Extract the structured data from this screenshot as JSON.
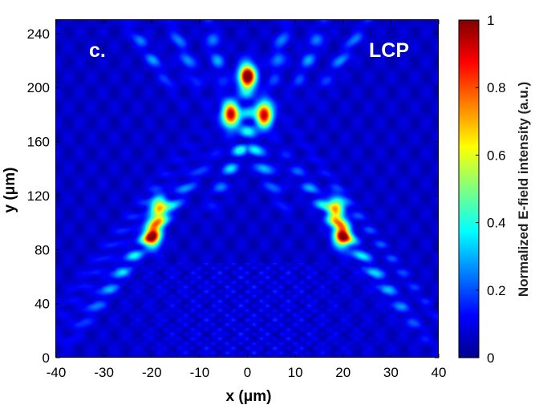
{
  "chart_data": {
    "type": "heatmap",
    "title": "",
    "xlabel": "x (μm)",
    "ylabel": "y (μm)",
    "xlim": [
      -40,
      40
    ],
    "ylim": [
      0,
      250
    ],
    "xticks": [
      -40,
      -30,
      -20,
      -10,
      0,
      10,
      20,
      30,
      40
    ],
    "yticks": [
      0,
      40,
      80,
      120,
      160,
      200,
      240
    ],
    "colorbar": {
      "label": "Normalized E-field intensity (a.u.)",
      "range": [
        0,
        1
      ],
      "ticks": [
        0,
        0.2,
        0.4,
        0.6,
        0.8,
        1
      ],
      "colormap": "jet"
    },
    "annotations": [
      {
        "text": "c.",
        "position": "top-left"
      },
      {
        "text": "LCP",
        "position": "top-right"
      }
    ],
    "hotspots": [
      {
        "x": 0,
        "y": 208,
        "intensity": 1.0
      },
      {
        "x": -3.5,
        "y": 180,
        "intensity": 0.88
      },
      {
        "x": 3.5,
        "y": 180,
        "intensity": 0.88
      },
      {
        "x": -19.8,
        "y": 91,
        "intensity": 0.82
      },
      {
        "x": 19.8,
        "y": 91,
        "intensity": 0.82
      },
      {
        "x": -18.5,
        "y": 110,
        "intensity": 0.6
      },
      {
        "x": 18.5,
        "y": 110,
        "intensity": 0.6
      }
    ]
  }
}
